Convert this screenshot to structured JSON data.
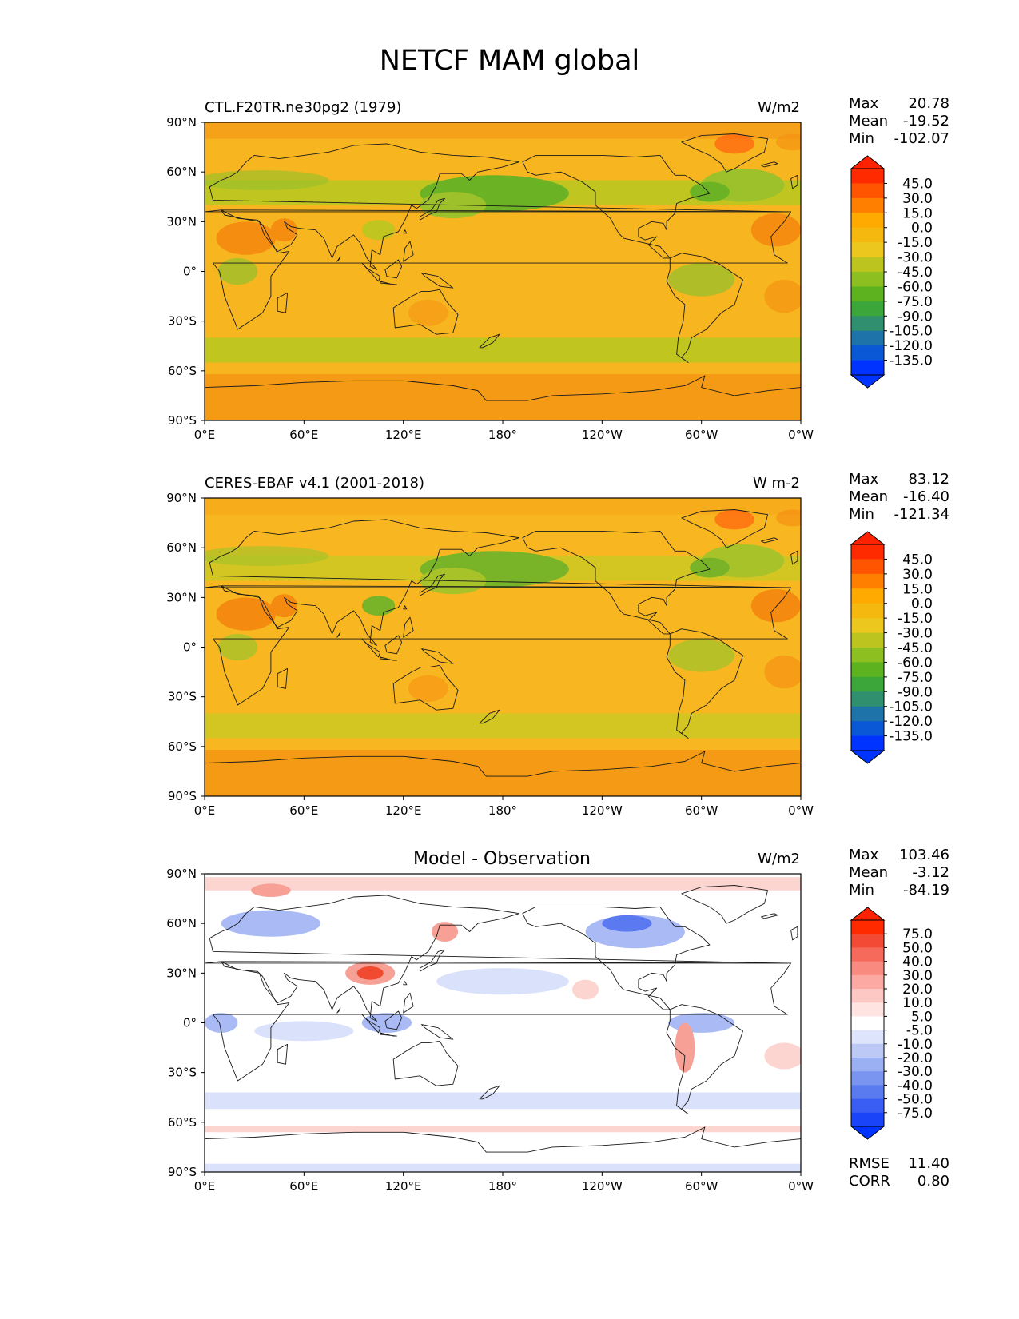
{
  "figure": {
    "title": "NETCF MAM global"
  },
  "axes": {
    "lat_ticks": [
      "90°N",
      "60°N",
      "30°N",
      "0°",
      "30°S",
      "60°S",
      "90°S"
    ],
    "lon_ticks": [
      "0°E",
      "60°E",
      "120°E",
      "180°",
      "120°W",
      "60°W",
      "0°W"
    ]
  },
  "panels": [
    {
      "id": "model",
      "left_title": "CTL.F20TR.ne30pg2 (1979)",
      "center_title": "",
      "units": "W/m2",
      "stats": [
        {
          "label": "Max",
          "value": "20.78"
        },
        {
          "label": "Mean",
          "value": "-19.52"
        },
        {
          "label": "Min",
          "value": "-102.07"
        }
      ],
      "colorbar": {
        "labels": [
          "45.0",
          "30.0",
          "15.0",
          "0.0",
          "-15.0",
          "-30.0",
          "-45.0",
          "-60.0",
          "-75.0",
          "-90.0",
          "-105.0",
          "-120.0",
          "-135.0"
        ],
        "colors": [
          "#ff2a00",
          "#ff5500",
          "#ff8000",
          "#ffaa00",
          "#f5b80f",
          "#ecc81f",
          "#bcc41f",
          "#8cbf1f",
          "#5cb31f",
          "#3ca63a",
          "#2f8f6e",
          "#1e73a8",
          "#0a58d6",
          "#0033ff"
        ],
        "over_color": "#ff2200",
        "under_color": "#0033ff"
      },
      "palette": {
        "base": "#f7b520",
        "polar_band": "#f59a14",
        "north_band": "#f5a21a",
        "storm_track": "#c0c520",
        "subtropical_green": "#9cc12a",
        "pacific_green": "#6bb325",
        "land_hot": "#f58e10"
      }
    },
    {
      "id": "obs",
      "left_title": "CERES-EBAF v4.1 (2001-2018)",
      "center_title": "",
      "units": "W m-2",
      "stats": [
        {
          "label": "Max",
          "value": "83.12"
        },
        {
          "label": "Mean",
          "value": "-16.40"
        },
        {
          "label": "Min",
          "value": "-121.34"
        }
      ],
      "colorbar": {
        "labels": [
          "45.0",
          "30.0",
          "15.0",
          "0.0",
          "-15.0",
          "-30.0",
          "-45.0",
          "-60.0",
          "-75.0",
          "-90.0",
          "-105.0",
          "-120.0",
          "-135.0"
        ],
        "colors": [
          "#ff2a00",
          "#ff5500",
          "#ff8000",
          "#ffaa00",
          "#f5b80f",
          "#ecc81f",
          "#bcc41f",
          "#8cbf1f",
          "#5cb31f",
          "#3ca63a",
          "#2f8f6e",
          "#1e73a8",
          "#0a58d6",
          "#0033ff"
        ],
        "over_color": "#ff2200",
        "under_color": "#0033ff"
      },
      "palette": {
        "base": "#f8b720",
        "polar_band": "#f59a14",
        "north_band": "#f7ac1c",
        "storm_track": "#d4c622",
        "subtropical_green": "#a8c22a",
        "pacific_green": "#79b328",
        "land_hot": "#f58a10"
      }
    },
    {
      "id": "diff",
      "left_title": "",
      "center_title": "Model - Observation",
      "units": "W/m2",
      "stats": [
        {
          "label": "Max",
          "value": "103.46"
        },
        {
          "label": "Mean",
          "value": "-3.12"
        },
        {
          "label": "Min",
          "value": "-84.19"
        }
      ],
      "extra_stats": [
        {
          "label": "RMSE",
          "value": "11.40"
        },
        {
          "label": "CORR",
          "value": "0.80"
        }
      ],
      "colorbar": {
        "labels": [
          "75.0",
          "50.0",
          "40.0",
          "30.0",
          "20.0",
          "10.0",
          "5.0",
          "-5.0",
          "-10.0",
          "-20.0",
          "-30.0",
          "-40.0",
          "-50.0",
          "-75.0"
        ],
        "colors": [
          "#ff2a00",
          "#f24a35",
          "#f56a5a",
          "#f88a80",
          "#fba9a2",
          "#fdc8c3",
          "#ffe4e1",
          "#ffffff",
          "#dde4fb",
          "#bcc9f7",
          "#9bb0f3",
          "#7a95ef",
          "#5a7af0",
          "#3a5ef3",
          "#1a44f8"
        ],
        "over_color": "#ff2200",
        "under_color": "#0033ff"
      },
      "palette": {
        "base": "#ffffff",
        "light_red": "#fcd5d0",
        "mid_red": "#f7a096",
        "strong_red": "#f04a30",
        "light_blue": "#d9e1fb",
        "mid_blue": "#a9baf5",
        "strong_blue": "#5b79f0"
      }
    }
  ]
}
